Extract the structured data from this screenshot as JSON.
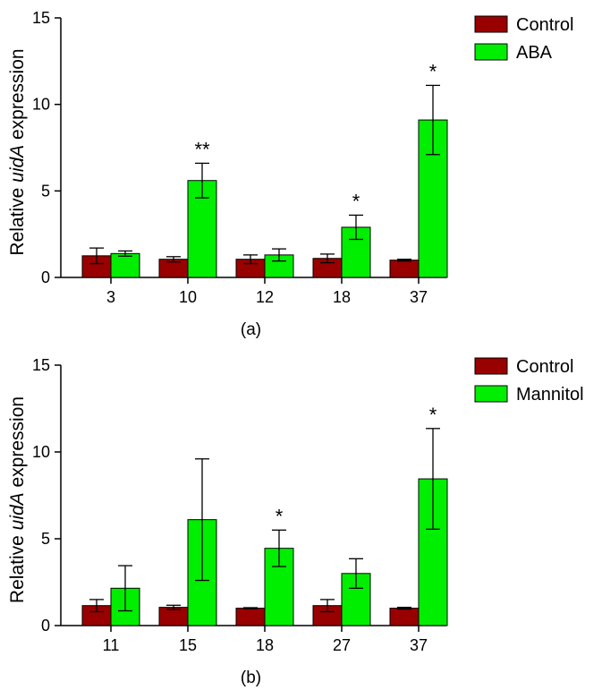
{
  "colors": {
    "control": "#990000",
    "treatment": "#00ee00",
    "axis": "#000000"
  },
  "chart_data": [
    {
      "type": "bar",
      "panel_label": "(a)",
      "ylabel_prefix": "Relative ",
      "ylabel_italic": "uidA",
      "ylabel_suffix": " expression",
      "ylim": [
        0,
        15
      ],
      "yticks": [
        0,
        5,
        10,
        15
      ],
      "categories": [
        "3",
        "10",
        "12",
        "18",
        "37"
      ],
      "legend_position": "top-right",
      "series": [
        {
          "name": "Control",
          "color_key": "control",
          "values": [
            1.25,
            1.05,
            1.05,
            1.1,
            1.0
          ],
          "errors": [
            0.45,
            0.15,
            0.25,
            0.25,
            0.05
          ]
        },
        {
          "name": "ABA",
          "color_key": "treatment",
          "values": [
            1.38,
            5.6,
            1.3,
            2.9,
            9.1
          ],
          "errors": [
            0.15,
            1.0,
            0.35,
            0.7,
            2.0
          ]
        }
      ],
      "annotations": [
        {
          "category": "10",
          "series": "ABA",
          "text": "**"
        },
        {
          "category": "18",
          "series": "ABA",
          "text": "*"
        },
        {
          "category": "37",
          "series": "ABA",
          "text": "*"
        }
      ]
    },
    {
      "type": "bar",
      "panel_label": "(b)",
      "ylabel_prefix": "Relative ",
      "ylabel_italic": "uidA",
      "ylabel_suffix": " expression",
      "ylim": [
        0,
        15
      ],
      "yticks": [
        0,
        5,
        10,
        15
      ],
      "categories": [
        "11",
        "15",
        "18",
        "27",
        "37"
      ],
      "legend_position": "top-right",
      "series": [
        {
          "name": "Control",
          "color_key": "control",
          "values": [
            1.15,
            1.05,
            1.0,
            1.15,
            1.0
          ],
          "errors": [
            0.35,
            0.12,
            0.03,
            0.35,
            0.05
          ]
        },
        {
          "name": "Mannitol",
          "color_key": "treatment",
          "values": [
            2.15,
            6.1,
            4.45,
            3.0,
            8.45
          ],
          "errors": [
            1.3,
            3.5,
            1.05,
            0.85,
            2.9
          ]
        }
      ],
      "annotations": [
        {
          "category": "18",
          "series": "Mannitol",
          "text": "*"
        },
        {
          "category": "37",
          "series": "Mannitol",
          "text": "*"
        }
      ]
    }
  ]
}
